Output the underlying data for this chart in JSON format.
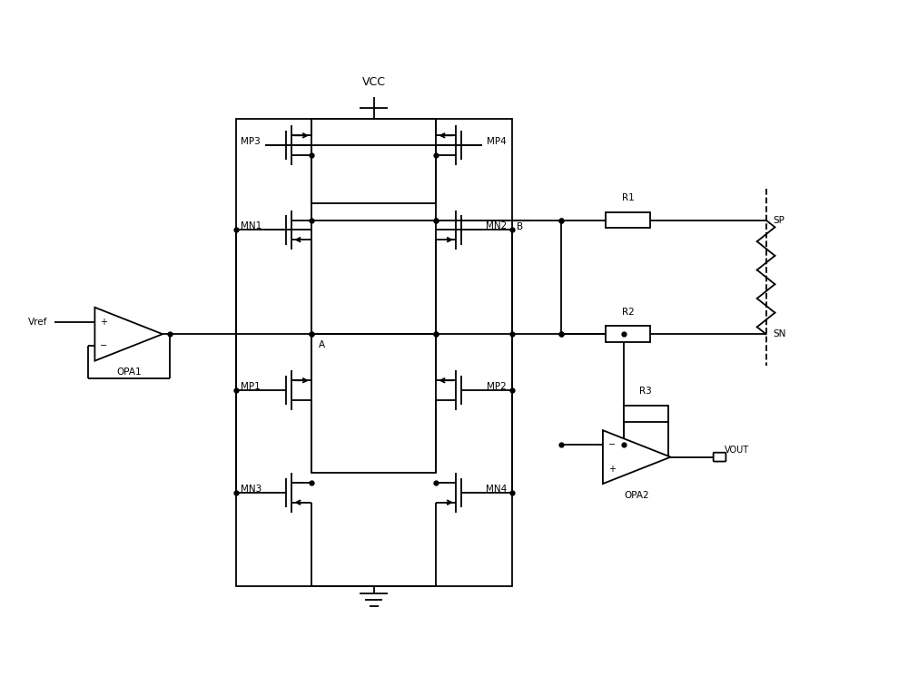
{
  "bg_color": "#ffffff",
  "line_color": "#000000",
  "lw": 1.3,
  "figsize": [
    10.0,
    7.56
  ],
  "dpi": 100,
  "labels": {
    "VCC": "VCC",
    "MP3": "MP3",
    "MP4": "MP4",
    "MN1": "MN1",
    "MN2": "MN2",
    "MP1": "MP1",
    "MP2": "MP2",
    "MN3": "MN3",
    "MN4": "MN4",
    "OPA1": "OPA1",
    "OPA2": "OPA2",
    "Vref": "Vref",
    "R1": "R1",
    "R2": "R2",
    "R3": "R3",
    "SP": "SP",
    "SN": "SN",
    "VOUT": "VOUT",
    "A": "A",
    "B": "B"
  },
  "fs_label": 9,
  "fs_small": 7.5,
  "fs_pin": 7
}
